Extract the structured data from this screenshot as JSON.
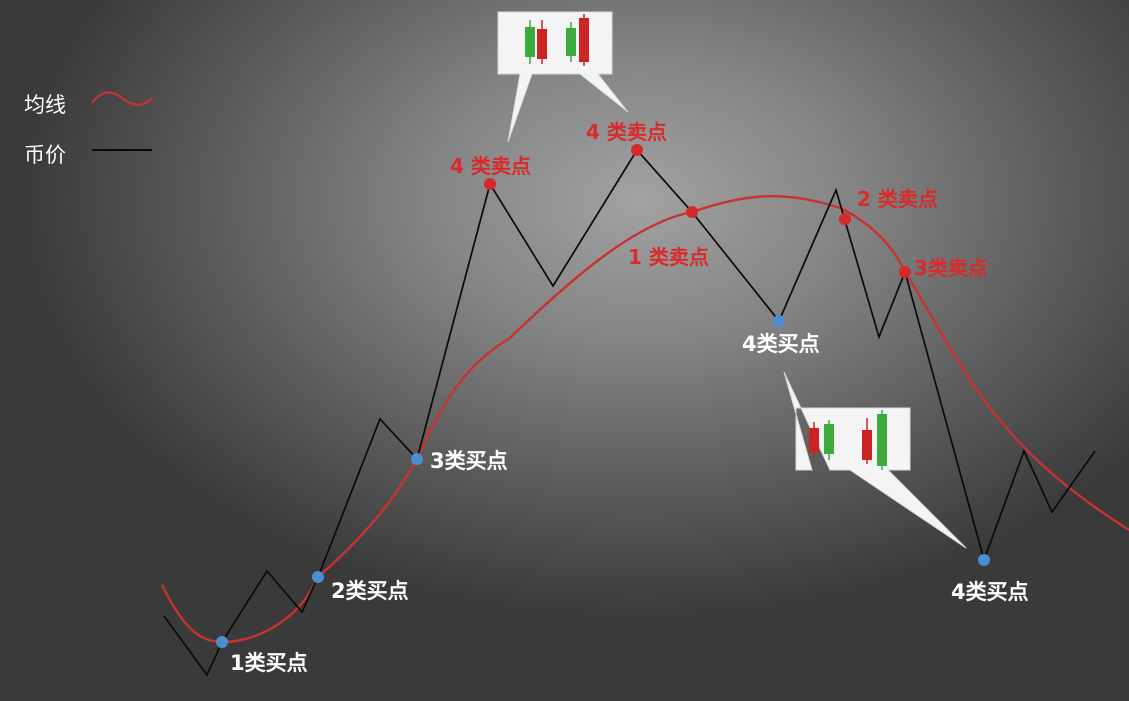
{
  "legend": {
    "ma_label": "均线",
    "price_label": "币价"
  },
  "colors": {
    "ma_line": "#c83232",
    "price_line": "#0a0a0a",
    "buy_dot": "#4b8fd0",
    "sell_dot": "#d42a2a",
    "buy_text": "#ffffff",
    "sell_text": "#d92b2b",
    "bull_candle": "#3caa3c",
    "bear_candle": "#cc2424",
    "callout_bg": "#f4f4f4"
  },
  "buy_points": [
    {
      "id": "buy1",
      "label": "1类买点"
    },
    {
      "id": "buy2",
      "label": "2类买点"
    },
    {
      "id": "buy3",
      "label": "3类买点"
    },
    {
      "id": "buy4a",
      "label": "4类买点"
    },
    {
      "id": "buy4b",
      "label": "4类买点"
    }
  ],
  "sell_points": [
    {
      "id": "sell4a",
      "label": "4 类卖点"
    },
    {
      "id": "sell4b",
      "label": "4 类卖点"
    },
    {
      "id": "sell1",
      "label": "1 类卖点"
    },
    {
      "id": "sell2",
      "label": "2 类卖点"
    },
    {
      "id": "sell3",
      "label": "3类卖点"
    }
  ],
  "callouts": [
    {
      "id": "top-callout",
      "candles": [
        "bull",
        "bear",
        "bull",
        "bear"
      ]
    },
    {
      "id": "bottom-callout",
      "candles": [
        "bear",
        "bull",
        "bear",
        "bull"
      ]
    }
  ]
}
